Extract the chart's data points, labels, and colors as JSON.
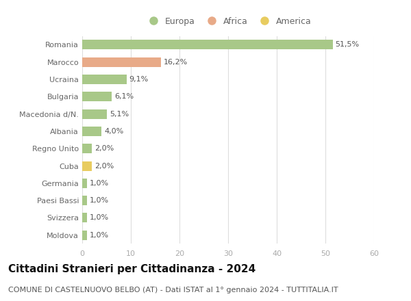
{
  "categories": [
    "Romania",
    "Marocco",
    "Ucraina",
    "Bulgaria",
    "Macedonia d/N.",
    "Albania",
    "Regno Unito",
    "Cuba",
    "Germania",
    "Paesi Bassi",
    "Svizzera",
    "Moldova"
  ],
  "values": [
    51.5,
    16.2,
    9.1,
    6.1,
    5.1,
    4.0,
    2.0,
    2.0,
    1.0,
    1.0,
    1.0,
    1.0
  ],
  "labels": [
    "51,5%",
    "16,2%",
    "9,1%",
    "6,1%",
    "5,1%",
    "4,0%",
    "2,0%",
    "2,0%",
    "1,0%",
    "1,0%",
    "1,0%",
    "1,0%"
  ],
  "continents": [
    "Europa",
    "Africa",
    "Europa",
    "Europa",
    "Europa",
    "Europa",
    "Europa",
    "America",
    "Europa",
    "Europa",
    "Europa",
    "Europa"
  ],
  "colors": {
    "Europa": "#a8c888",
    "Africa": "#e8aa88",
    "America": "#e8cc60"
  },
  "legend_items": [
    {
      "label": "Europa",
      "color": "#a8c888"
    },
    {
      "label": "Africa",
      "color": "#e8aa88"
    },
    {
      "label": "America",
      "color": "#e8cc60"
    }
  ],
  "xlim": [
    0,
    60
  ],
  "xticks": [
    0,
    10,
    20,
    30,
    40,
    50,
    60
  ],
  "title": "Cittadini Stranieri per Cittadinanza - 2024",
  "subtitle": "COMUNE DI CASTELNUOVO BELBO (AT) - Dati ISTAT al 1° gennaio 2024 - TUTTITALIA.IT",
  "background_color": "#ffffff",
  "grid_color": "#dddddd",
  "bar_height": 0.55,
  "title_fontsize": 11,
  "subtitle_fontsize": 8,
  "label_fontsize": 8,
  "tick_fontsize": 8,
  "legend_fontsize": 9,
  "ytick_color": "#666666",
  "xtick_color": "#aaaaaa",
  "label_color": "#555555"
}
